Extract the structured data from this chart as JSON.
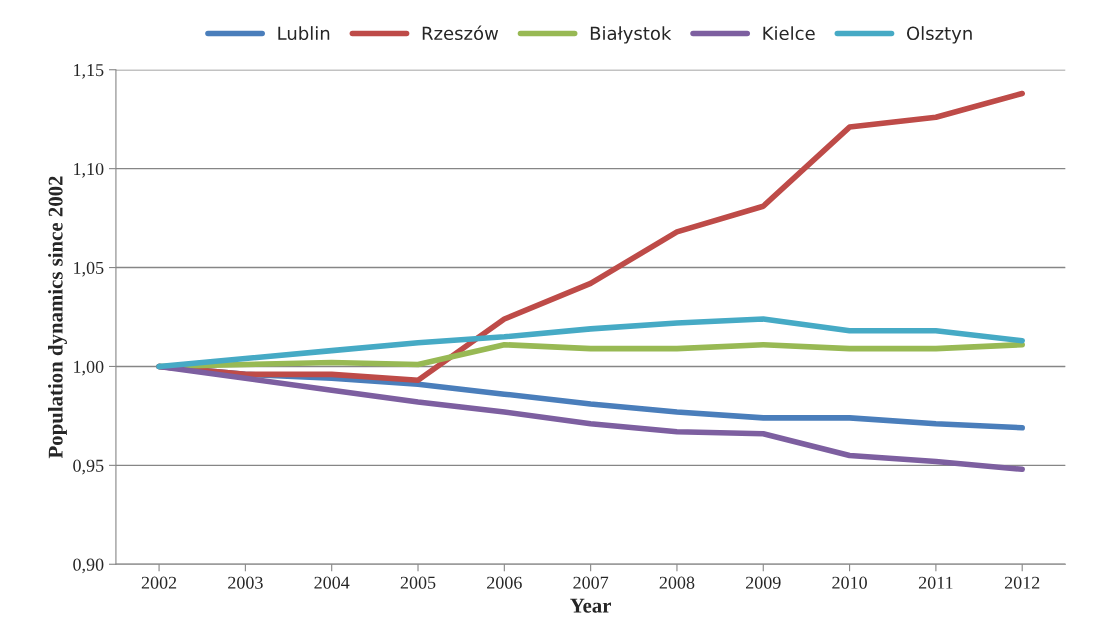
{
  "chart_data": {
    "type": "line",
    "xlabel": "Year",
    "ylabel": "Population dynamics since 2002",
    "categories": [
      "2002",
      "2003",
      "2004",
      "2005",
      "2006",
      "2007",
      "2008",
      "2009",
      "2010",
      "2011",
      "2012"
    ],
    "series": [
      {
        "name": "Lublin",
        "color": "#4a7ebb",
        "values": [
          1.0,
          0.996,
          0.994,
          0.991,
          0.986,
          0.981,
          0.977,
          0.974,
          0.974,
          0.971,
          0.969
        ]
      },
      {
        "name": "Rzeszów",
        "color": "#be4b48",
        "values": [
          1.0,
          0.996,
          0.996,
          0.993,
          1.024,
          1.042,
          1.068,
          1.081,
          1.121,
          1.126,
          1.138
        ]
      },
      {
        "name": "Białystok",
        "color": "#98b954",
        "values": [
          1.0,
          1.001,
          1.002,
          1.001,
          1.011,
          1.009,
          1.009,
          1.011,
          1.009,
          1.009,
          1.011
        ]
      },
      {
        "name": "Kielce",
        "color": "#7d5fa0",
        "values": [
          1.0,
          0.994,
          0.988,
          0.982,
          0.977,
          0.971,
          0.967,
          0.966,
          0.955,
          0.952,
          0.948
        ]
      },
      {
        "name": "Olsztyn",
        "color": "#46aac5",
        "values": [
          1.0,
          1.004,
          1.008,
          1.012,
          1.015,
          1.019,
          1.022,
          1.024,
          1.018,
          1.018,
          1.013
        ]
      }
    ],
    "ylim": [
      0.9,
      1.15
    ],
    "yticks": [
      {
        "value": 0.9,
        "label": "0,90"
      },
      {
        "value": 0.95,
        "label": "0,95"
      },
      {
        "value": 1.0,
        "label": "1,00"
      },
      {
        "value": 1.05,
        "label": "1,05"
      },
      {
        "value": 1.1,
        "label": "1,10"
      },
      {
        "value": 1.15,
        "label": "1,15"
      }
    ],
    "grid": "y",
    "legend": "top",
    "marker": "none",
    "line_style": "solid"
  }
}
